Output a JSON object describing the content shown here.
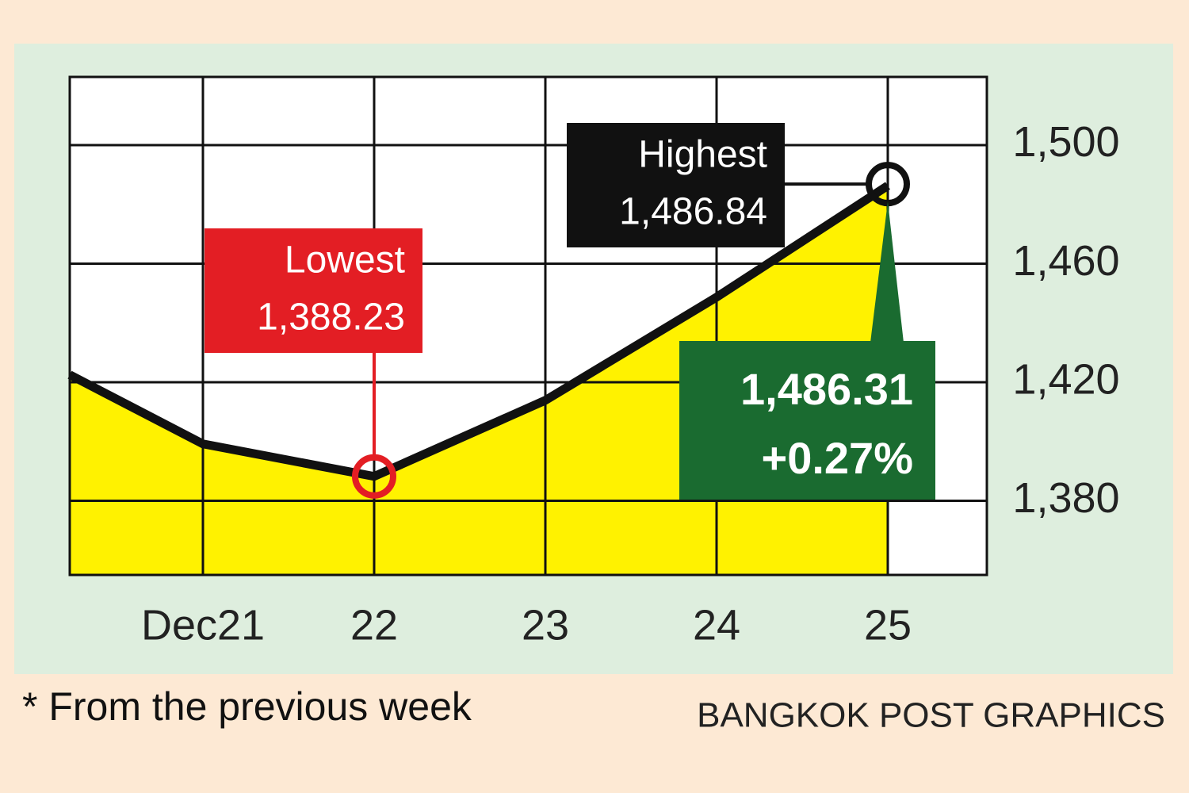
{
  "chart_data": {
    "type": "area",
    "categories": [
      null,
      "Dec21",
      "22",
      "23",
      "24",
      "25"
    ],
    "values": [
      1422.5,
      1399.2,
      1388.23,
      1413.9,
      1448.7,
      1486.31
    ],
    "color": "#111111",
    "fill_color": "#fff200",
    "ylim": [
      1355,
      1523
    ],
    "yticks": [
      {
        "value": 1380,
        "label": "1,380"
      },
      {
        "value": 1420,
        "label": "1,420"
      },
      {
        "value": 1460,
        "label": "1,460"
      },
      {
        "value": 1500,
        "label": "1,500"
      }
    ],
    "grid": true,
    "annotations": [
      {
        "text": "Lowest",
        "at": "22",
        "value": 1388.23,
        "value_label": "1,388.23",
        "color": "#e31e24"
      },
      {
        "text": "Highest",
        "at": "25",
        "value": 1486.84,
        "value_label": "1,486.84",
        "color": "#111111"
      }
    ],
    "close": {
      "value": 1486.31,
      "value_label": "1,486.31",
      "color": "#1a6b30"
    },
    "change": {
      "value": 0.27,
      "value_label": "+0.27%"
    },
    "footnote": "* From the previous week",
    "source": "BANGKOK POST GRAPHICS"
  }
}
